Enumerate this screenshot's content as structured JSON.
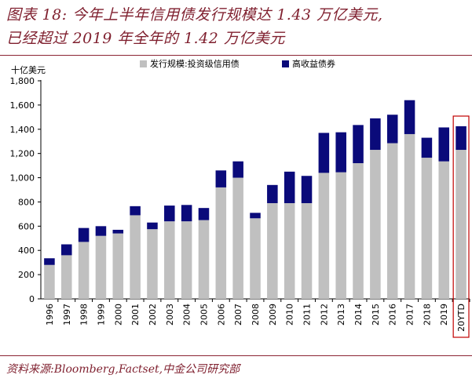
{
  "header": {
    "title_line1": "图表 18: 今年上半年信用债发行规模达 1.43 万亿美元,",
    "title_line2": "已经超过 2019 年全年的 1.42 万亿美元"
  },
  "footer": {
    "source": "资料来源:Bloomberg,Factset,中金公司研究部"
  },
  "colors": {
    "grey": "#c0c0c0",
    "navy": "#0a0a7a",
    "highlight": "#c00000",
    "brand": "#7f1f2e"
  },
  "chart_data": {
    "type": "bar",
    "stacked": true,
    "unit_label": "十亿美元",
    "ylim": [
      0,
      1800
    ],
    "yticks": [
      "0",
      "200",
      "400",
      "600",
      "800",
      "1,000",
      "1,200",
      "1,400",
      "1,600",
      "1,800"
    ],
    "grid": false,
    "legend_position": "top",
    "categories": [
      "1996",
      "1997",
      "1998",
      "1999",
      "2000",
      "2001",
      "2002",
      "2003",
      "2004",
      "2005",
      "2006",
      "2007",
      "2008",
      "2009",
      "2010",
      "2011",
      "2012",
      "2013",
      "2014",
      "2015",
      "2016",
      "2017",
      "2018",
      "2019",
      "20YTD"
    ],
    "series": [
      {
        "name": "发行规模:投资级信用债",
        "color": "#c0c0c0",
        "values": [
          280,
          360,
          470,
          520,
          540,
          690,
          575,
          640,
          640,
          650,
          920,
          1000,
          665,
          790,
          790,
          790,
          1040,
          1045,
          1120,
          1230,
          1285,
          1360,
          1165,
          1135,
          1230
        ]
      },
      {
        "name": "高收益债券",
        "color": "#0a0a7a",
        "values": [
          55,
          90,
          115,
          80,
          30,
          75,
          55,
          130,
          135,
          100,
          140,
          135,
          45,
          150,
          260,
          225,
          330,
          330,
          315,
          260,
          235,
          280,
          165,
          280,
          195
        ]
      }
    ],
    "highlight_category": "20YTD"
  }
}
